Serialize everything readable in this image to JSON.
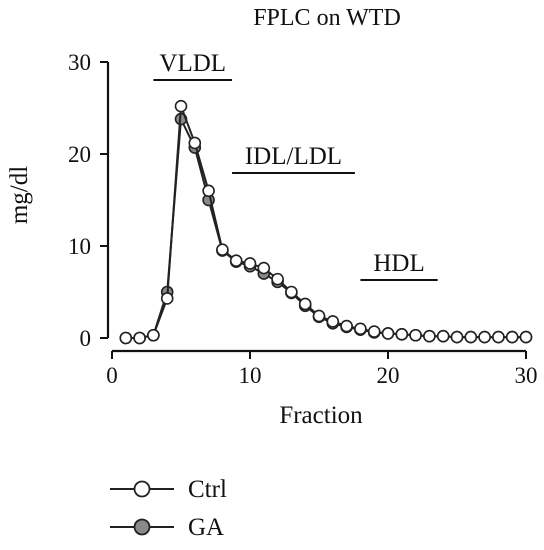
{
  "chart_data": {
    "type": "line",
    "title": "FPLC on WTD",
    "xlabel": "Fraction",
    "ylabel": "mg/dl",
    "xlim": [
      0,
      30
    ],
    "ylim": [
      0,
      30
    ],
    "xticks": [
      "0",
      "10",
      "20",
      "30"
    ],
    "yticks": [
      "0",
      "10",
      "20",
      "30"
    ],
    "legend_position": "bottom-left",
    "annotations": [
      {
        "label": "VLDL",
        "x_range": [
          3,
          8.7
        ]
      },
      {
        "label": "IDL/LDL",
        "x_range": [
          8.7,
          17.6
        ]
      },
      {
        "label": "HDL",
        "x_range": [
          18,
          23.6
        ]
      }
    ],
    "series": [
      {
        "name": "GA",
        "marker": "filled-circle",
        "color": "#8a8a8a",
        "x": [
          1,
          2,
          3,
          4,
          5,
          6,
          7,
          8,
          9,
          10,
          11,
          12,
          13,
          14,
          15,
          16,
          17,
          18,
          19,
          20,
          21,
          22,
          23,
          24,
          25,
          26,
          27,
          28,
          29,
          30
        ],
        "y": [
          0,
          0,
          0.3,
          5,
          23.8,
          20.7,
          15,
          9.5,
          8.3,
          7.8,
          7,
          6.1,
          4.9,
          3.5,
          2.3,
          1.6,
          1.2,
          0.9,
          0.6,
          0.5,
          0.4,
          0.3,
          0.2,
          0.2,
          0.1,
          0.1,
          0.1,
          0.1,
          0.1,
          0.1
        ]
      },
      {
        "name": "Ctrl",
        "marker": "open-circle",
        "color": "#ffffff",
        "x": [
          1,
          2,
          3,
          4,
          5,
          6,
          7,
          8,
          9,
          10,
          11,
          12,
          13,
          14,
          15,
          16,
          17,
          18,
          19,
          20,
          21,
          22,
          23,
          24,
          25,
          26,
          27,
          28,
          29,
          30
        ],
        "y": [
          0,
          0,
          0.3,
          4.3,
          25.2,
          21.2,
          16,
          9.6,
          8.4,
          8.1,
          7.6,
          6.4,
          5,
          3.7,
          2.4,
          1.8,
          1.3,
          1,
          0.7,
          0.5,
          0.4,
          0.3,
          0.2,
          0.2,
          0.1,
          0.1,
          0.1,
          0.1,
          0.1,
          0.1
        ]
      }
    ]
  }
}
